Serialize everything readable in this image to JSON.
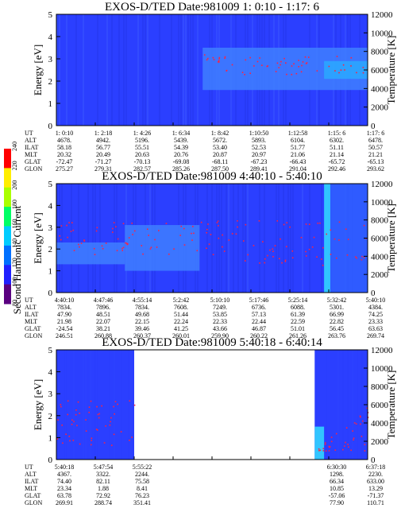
{
  "chart_data": [
    {
      "type": "heatmap",
      "title": "EXOS-D/TED   Date:981009  1: 0:10 - 1:17: 6",
      "ylabel": "Energy [eV]",
      "y2label": "Temperature [K]",
      "ylim": [
        0,
        5
      ],
      "y2lim": [
        0,
        12000
      ],
      "yticks": [
        "0",
        "1",
        "2",
        "3",
        "4",
        "5"
      ],
      "y2ticks": [
        "0",
        "2000",
        "4000",
        "6000",
        "8000",
        "10000",
        "12000"
      ],
      "features": [
        {
          "label": "enhanced band",
          "start": 0.47,
          "end": 1.0,
          "y_range": [
            1.6,
            3.5
          ],
          "color": "#3f7fff"
        },
        {
          "label": "bright patch",
          "start": 0.86,
          "end": 1.0,
          "y_range": [
            2.1,
            2.9
          ],
          "color": "#2aa9ff"
        }
      ],
      "table": {
        "rows": [
          {
            "label": "UT",
            "values": [
              "1: 0:10",
              "1: 2:18",
              "1: 4:26",
              "1: 6:34",
              "1: 8:42",
              "1:10:50",
              "1:12:58",
              "1:15: 6",
              "1:17: 6"
            ]
          },
          {
            "label": "ALT",
            "values": [
              "4678.",
              "4942.",
              "5196.",
              "5439.",
              "5672.",
              "5893.",
              "6104.",
              "6302.",
              "6478."
            ]
          },
          {
            "label": "ILAT",
            "values": [
              "58.18",
              "56.77",
              "55.51",
              "54.39",
              "53.40",
              "52.53",
              "51.77",
              "51.11",
              "50.57"
            ]
          },
          {
            "label": "MLT",
            "values": [
              "20.32",
              "20.49",
              "20.63",
              "20.76",
              "20.87",
              "20.97",
              "21.06",
              "21.14",
              "21.21"
            ]
          },
          {
            "label": "GLAT",
            "values": [
              "-72.47",
              "-71.27",
              "-70.13",
              "-69.08",
              "-68.11",
              "-67.23",
              "-66.43",
              "-65.72",
              "-65.13"
            ]
          },
          {
            "label": "GLON",
            "values": [
              "275.27",
              "279.31",
              "282.57",
              "285.26",
              "287.50",
              "289.41",
              "291.04",
              "292.46",
              "293.62"
            ]
          }
        ]
      }
    },
    {
      "type": "heatmap",
      "title": "EXOS-D/TED   Date:981009  4:40:10 - 5:40:10",
      "ylabel": "Energy [eV]",
      "y2label": "Temperature [K]",
      "ylim": [
        0,
        5
      ],
      "y2lim": [
        0,
        12000
      ],
      "yticks": [
        "0",
        "1",
        "2",
        "3",
        "4",
        "5"
      ],
      "y2ticks": [
        "0",
        "2000",
        "4000",
        "6000",
        "8000",
        "10000",
        "12000"
      ],
      "features": [
        {
          "label": "low band",
          "start": 0.0,
          "end": 0.22,
          "y_range": [
            1.3,
            2.3
          ],
          "color": "#3f7fff"
        },
        {
          "label": "broad band",
          "start": 0.22,
          "end": 0.46,
          "y_range": [
            1.0,
            3.1
          ],
          "color": "#3f7fff"
        },
        {
          "label": "bright column",
          "start": 0.86,
          "end": 0.88,
          "y_range": [
            0,
            5
          ],
          "color": "#33ddff"
        },
        {
          "label": "edge columns",
          "start": 0.88,
          "end": 1.0,
          "y_range": [
            0,
            5
          ],
          "color": "#3060ff"
        }
      ],
      "table": {
        "rows": [
          {
            "label": "UT",
            "values": [
              "4:40:10",
              "4:47:46",
              "4:55:14",
              "5:2:42",
              "5:10:10",
              "5:17:46",
              "5:25:14",
              "5:32:42",
              "5:40:10"
            ]
          },
          {
            "label": "ALT",
            "values": [
              "7834.",
              "7896.",
              "7834.",
              "7608.",
              "7249.",
              "6736.",
              "6088.",
              "5301.",
              "4384."
            ]
          },
          {
            "label": "ILAT",
            "values": [
              "47.90",
              "48.51",
              "49.68",
              "51.44",
              "53.85",
              "57.13",
              "61.39",
              "66.99",
              "74.25"
            ]
          },
          {
            "label": "MLT",
            "values": [
              "21.98",
              "22.07",
              "22.15",
              "22.24",
              "22.33",
              "22.44",
              "22.59",
              "22.82",
              "23.33"
            ]
          },
          {
            "label": "GLAT",
            "values": [
              "-24.54",
              "38.21",
              "39.46",
              "41.25",
              "43.66",
              "46.87",
              "51.01",
              "56.45",
              "63.63"
            ]
          },
          {
            "label": "GLON",
            "values": [
              "246.51",
              "260.88",
              "260.37",
              "260.01",
              "259.90",
              "260.22",
              "261.26",
              "263.76",
              "269.74"
            ]
          }
        ]
      }
    },
    {
      "type": "heatmap",
      "title": "EXOS-D/TED   Date:981009  5:40:18 - 6:40:14",
      "ylabel": "Energy [eV]",
      "y2label": "Temperature [K]",
      "ylim": [
        0,
        5
      ],
      "y2lim": [
        0,
        12000
      ],
      "yticks": [
        "0",
        "1",
        "2",
        "3",
        "4",
        "5"
      ],
      "y2ticks": [
        "0",
        "2000",
        "4000",
        "6000",
        "8000",
        "10000",
        "12000"
      ],
      "features": [
        {
          "label": "data segment 1",
          "start": 0.0,
          "end": 0.25,
          "y_range": [
            0,
            5
          ],
          "color": "#2b3fff"
        },
        {
          "label": "no data",
          "start": 0.25,
          "end": 0.83,
          "y_range": [
            0,
            5
          ],
          "color": "#ffffff"
        },
        {
          "label": "data segment 2",
          "start": 0.83,
          "end": 1.0,
          "y_range": [
            0,
            5
          ],
          "color": "#2b3fff"
        },
        {
          "label": "bright low band",
          "start": 0.83,
          "end": 0.86,
          "y_range": [
            0,
            1.5
          ],
          "color": "#33ddff"
        }
      ],
      "table": {
        "rows": [
          {
            "label": "UT",
            "values": [
              "5:40:18",
              "5:47:54",
              "5:55:22",
              "",
              "",
              "",
              "",
              "6:30:30",
              "6:37:18"
            ]
          },
          {
            "label": "ALT",
            "values": [
              "4367.",
              "3322.",
              "2244.",
              "",
              "",
              "",
              "",
              "1298.",
              "2230."
            ]
          },
          {
            "label": "ILAT",
            "values": [
              "74.40",
              "82.11",
              "75.58",
              "",
              "",
              "",
              "",
              "66.34",
              "633.00"
            ]
          },
          {
            "label": "MLT",
            "values": [
              "23.34",
              "1.88",
              "8.41",
              "",
              "",
              "",
              "",
              "10.85",
              "13.29"
            ]
          },
          {
            "label": "GLAT",
            "values": [
              "63.78",
              "72.92",
              "76.23",
              "",
              "",
              "",
              "",
              "-57.06",
              "-71.37"
            ]
          },
          {
            "label": "GLON",
            "values": [
              "269.91",
              "288.74",
              "351.41",
              "",
              "",
              "",
              "",
              "77.90",
              "110.71"
            ]
          }
        ]
      }
    }
  ],
  "colorbar": {
    "label": "Second Harmonic Current",
    "ticks": [
      "80",
      "100",
      "120",
      "140",
      "160",
      "180",
      "200",
      "220",
      "240"
    ],
    "colors": [
      "#000000",
      "#5a0080",
      "#2020ff",
      "#0070ff",
      "#00ccff",
      "#00ff66",
      "#aaff00",
      "#ffee00",
      "#ff0000"
    ]
  },
  "colors": {
    "background": "#2b3fff",
    "band": "#3f7fff",
    "bright": "#33ddff",
    "dots": "#ff2040"
  }
}
